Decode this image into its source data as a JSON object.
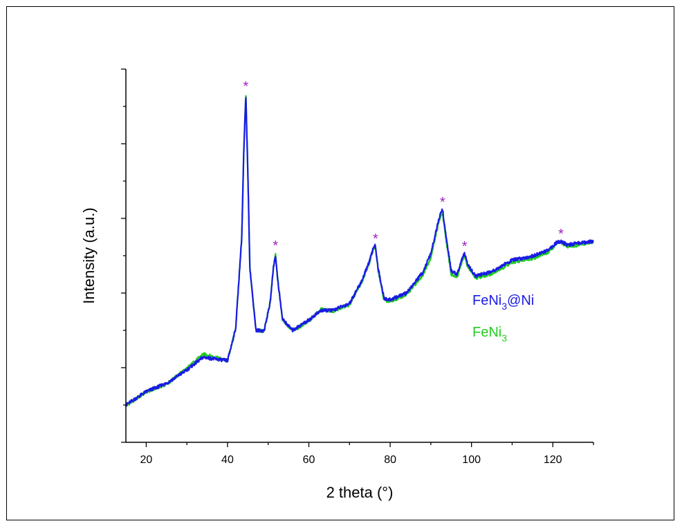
{
  "chart_data": {
    "type": "line",
    "xlabel": "2 theta (°)",
    "ylabel": "Intensity (a.u.)",
    "xlim": [
      15,
      130
    ],
    "ylim": [
      0,
      100
    ],
    "x_ticks": [
      20,
      40,
      60,
      80,
      100,
      120
    ],
    "y_ticks_shown": false,
    "grid": false,
    "legend_position": "right-middle",
    "peak_marker": "*",
    "peak_marker_color": "#a020c0",
    "peak_positions": [
      44.5,
      51.8,
      76.4,
      92.9,
      98.3,
      122.0
    ],
    "series": [
      {
        "name": "FeNi₃",
        "legend": {
          "base": "FeNi",
          "sub": "3",
          "tail": ""
        },
        "color": "#22cc22",
        "x": [
          15,
          20,
          25,
          30,
          34,
          37,
          40,
          42,
          43.5,
          44,
          44.5,
          45,
          45.5,
          47,
          49,
          50.5,
          51.3,
          51.8,
          52.3,
          53.5,
          56,
          60,
          63,
          66,
          70,
          73,
          75,
          76,
          76.4,
          77,
          78.5,
          80,
          84,
          88,
          90,
          91.5,
          92.5,
          92.9,
          93.5,
          95,
          96.5,
          97.8,
          98.3,
          99,
          101,
          105,
          110,
          115,
          119,
          121,
          122,
          123.5,
          126,
          130
        ],
        "y": [
          9.8,
          13.5,
          15.6,
          19.8,
          23.6,
          22.8,
          21.8,
          30.5,
          55,
          78,
          93.4,
          72,
          46.6,
          30,
          29.8,
          37.5,
          47.2,
          50.7,
          44,
          33,
          29.8,
          32.5,
          35.6,
          35.2,
          36.9,
          42.9,
          48.5,
          52.2,
          52.1,
          46.5,
          38.1,
          37.8,
          39.5,
          44.8,
          49.5,
          57,
          61,
          61.2,
          56,
          45,
          44.5,
          49,
          49.9,
          47.3,
          44,
          45.2,
          48.2,
          49.3,
          51,
          53.3,
          53.6,
          52.5,
          52.8,
          53.8
        ]
      },
      {
        "name": "FeNi₃@Ni",
        "legend": {
          "base": "FeNi",
          "sub": "3",
          "tail": "@Ni"
        },
        "color": "#1a1ae6",
        "x": [
          15,
          20,
          25,
          30,
          34,
          37,
          40,
          42,
          43.5,
          44,
          44.5,
          45,
          45.5,
          47,
          49,
          50.5,
          51.3,
          51.8,
          52.3,
          53.5,
          56,
          60,
          63,
          66,
          70,
          73,
          75,
          76,
          76.4,
          77,
          78.5,
          80,
          84,
          88,
          90,
          91.5,
          92.5,
          92.9,
          93.5,
          95,
          96.5,
          97.8,
          98.3,
          99,
          101,
          105,
          110,
          115,
          119,
          121,
          122,
          123.5,
          126,
          130
        ],
        "y": [
          10.0,
          13.6,
          15.8,
          19.4,
          22.8,
          22.3,
          21.9,
          30.5,
          55,
          78,
          92.8,
          72,
          46.6,
          30,
          29.9,
          37.5,
          47,
          50.1,
          44,
          33,
          30.0,
          32.8,
          35.3,
          35.4,
          37.2,
          43.2,
          48.8,
          52.6,
          52.6,
          46.9,
          38.5,
          38.2,
          40,
          45.5,
          50.5,
          57.5,
          61.8,
          62.4,
          57,
          46,
          45,
          49.5,
          50.6,
          47.8,
          44.5,
          45.8,
          48.8,
          49.9,
          51.5,
          53.6,
          53.9,
          52.9,
          53.3,
          53.9
        ]
      }
    ]
  }
}
